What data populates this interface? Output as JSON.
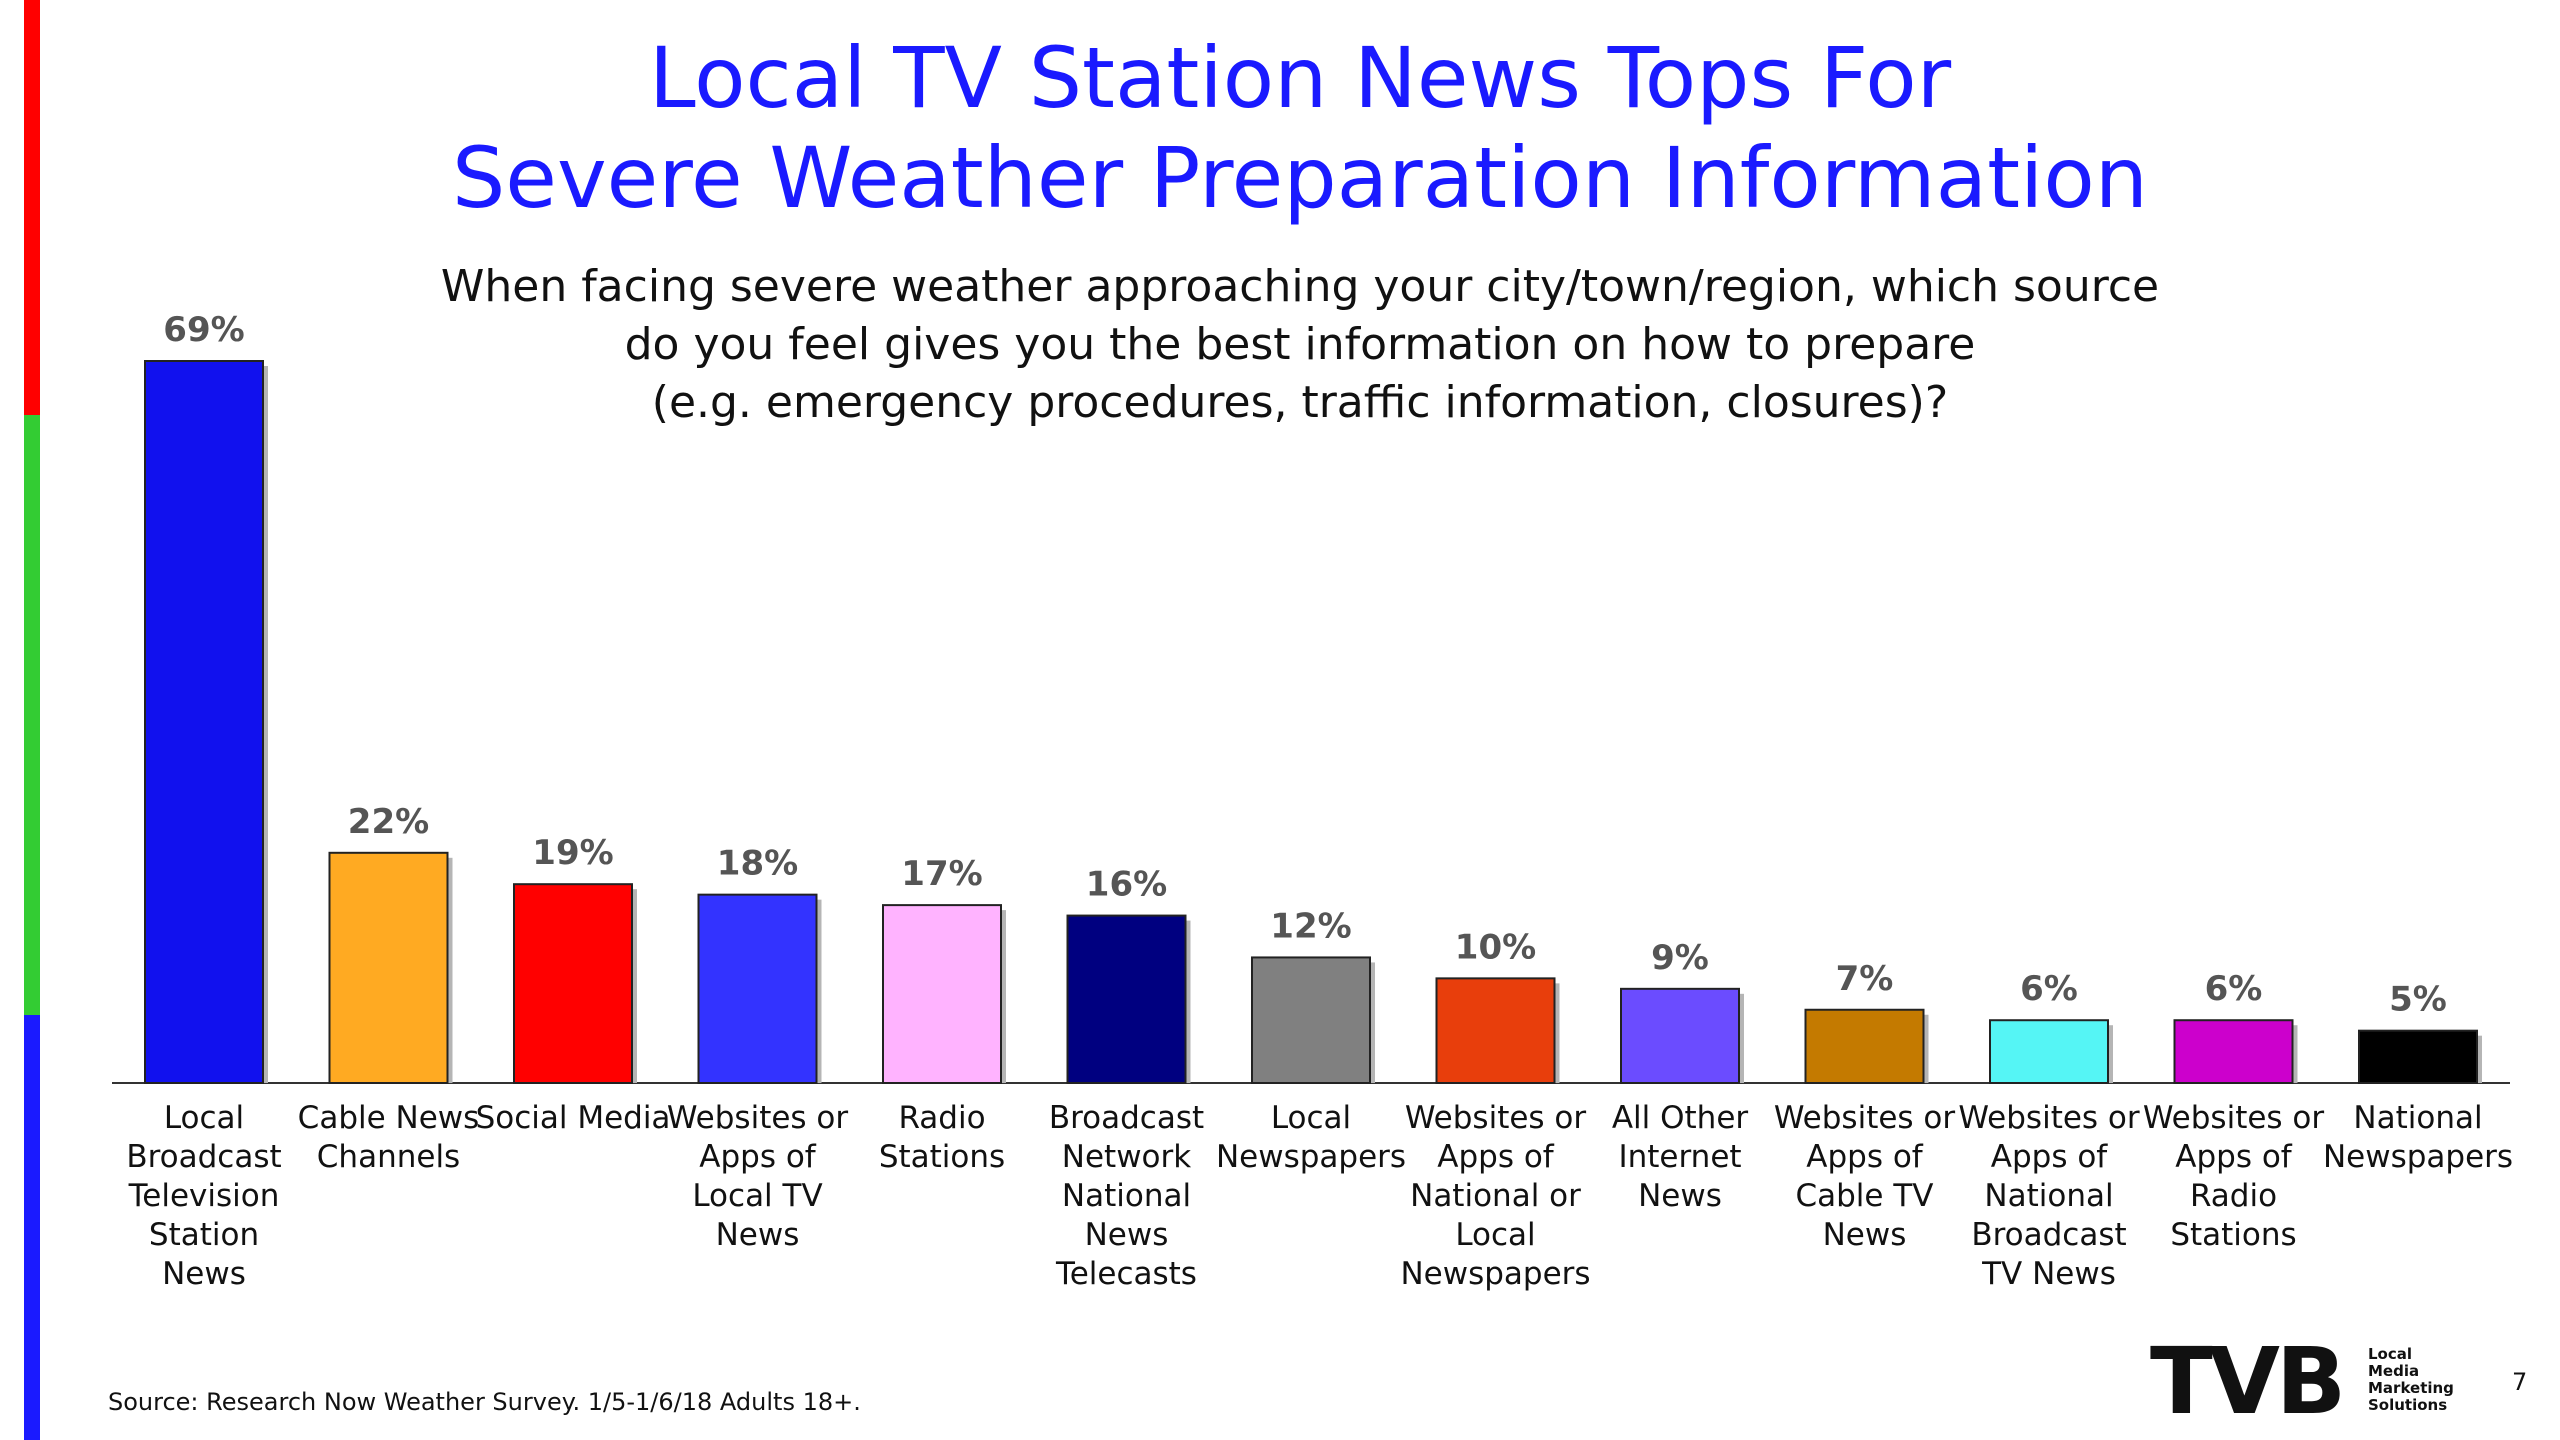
{
  "colors": {
    "title": "#1a1aff",
    "stripes": [
      "#ff0000",
      "#33cc33",
      "#1a1aff"
    ]
  },
  "chart_data": {
    "type": "bar",
    "title": "Local TV Station News Tops For Severe Weather Preparation Information",
    "title_lines": [
      "Local TV Station News Tops For",
      "Severe Weather Preparation Information"
    ],
    "subtitle_lines": [
      "When facing severe weather approaching your city/town/region, which source",
      "do you feel gives you the best information on how to prepare",
      "(e.g. emergency procedures, traffic information, closures)?"
    ],
    "categories": [
      [
        "Local",
        "Broadcast",
        "Television",
        "Station",
        "News"
      ],
      [
        "Cable News",
        "Channels"
      ],
      [
        "Social Media"
      ],
      [
        "Websites or",
        "Apps of",
        "Local TV",
        "News"
      ],
      [
        "Radio",
        "Stations"
      ],
      [
        "Broadcast",
        "Network",
        "National",
        "News",
        "Telecasts"
      ],
      [
        "Local",
        "Newspapers"
      ],
      [
        "Websites or",
        "Apps of",
        "National or",
        "Local",
        "Newspapers"
      ],
      [
        "All Other",
        "Internet",
        "News"
      ],
      [
        "Websites or",
        "Apps of",
        "Cable TV",
        "News"
      ],
      [
        "Websites or",
        "Apps of",
        "National",
        "Broadcast",
        "TV News"
      ],
      [
        "Websites or",
        "Apps of",
        "Radio",
        "Stations"
      ],
      [
        "National",
        "Newspapers"
      ]
    ],
    "values": [
      69,
      22,
      19,
      18,
      17,
      16,
      12,
      10,
      9,
      7,
      6,
      6,
      5
    ],
    "value_labels": [
      "69%",
      "22%",
      "19%",
      "18%",
      "17%",
      "16%",
      "12%",
      "10%",
      "9%",
      "7%",
      "6%",
      "6%",
      "5%"
    ],
    "bar_colors": [
      "#1111ee",
      "#ffaa22",
      "#ff0000",
      "#3333ff",
      "#ffb3ff",
      "#000080",
      "#808080",
      "#e83e0c",
      "#6b4cff",
      "#c47a00",
      "#55f5f5",
      "#cc00cc",
      "#000000"
    ],
    "ylim": [
      0,
      69
    ],
    "grid": false,
    "legend": "none"
  },
  "footer": {
    "source": "Source: Research Now Weather Survey. 1/5-1/6/18 Adults 18+.",
    "page_number": "7",
    "logo_text": "TVB",
    "logo_tagline": [
      "Local",
      "Media",
      "Marketing",
      "Solutions"
    ]
  }
}
